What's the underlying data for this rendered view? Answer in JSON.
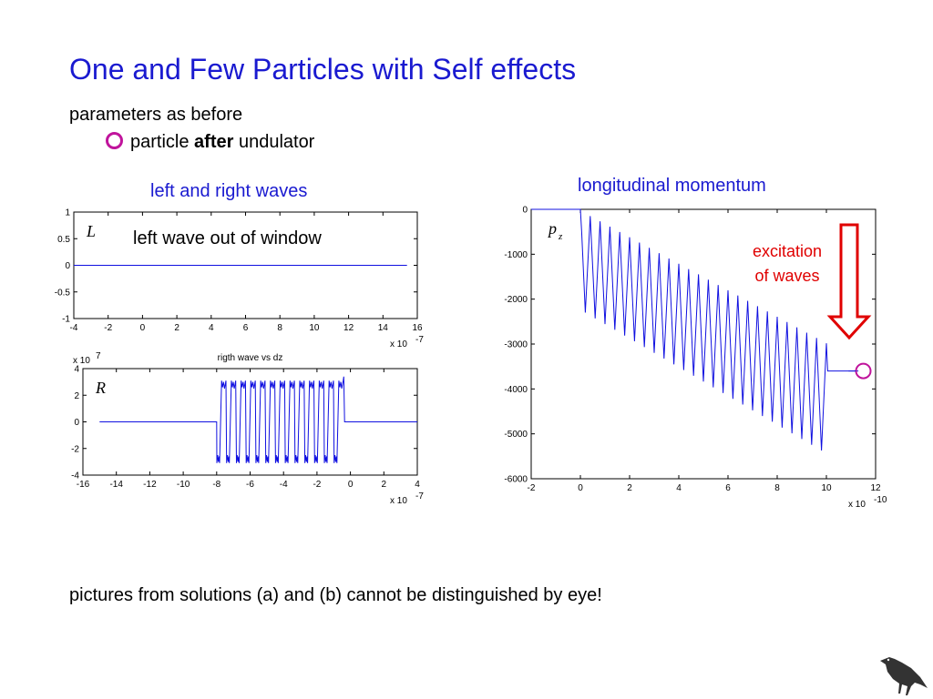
{
  "title": "One and Few Particles with Self effects",
  "subtitle": "parameters as before",
  "bullet": {
    "pre": "particle ",
    "bold": "after",
    "post": " undulator"
  },
  "caption_left": "left and right waves",
  "caption_right": "longitudinal momentum",
  "left_note": "left wave out of window",
  "excitation": {
    "line1": "excitation",
    "line2": "of waves"
  },
  "footer": "pictures from solutions (a) and (b) cannot be distinguished by eye!",
  "colors": {
    "title": "#1a1ad0",
    "curve": "#1010e0",
    "marker": "#c0149c",
    "arrow": "#e00000"
  },
  "chart_data": [
    {
      "id": "L",
      "type": "line",
      "title": "",
      "panel_label": "L",
      "xlim": [
        -4,
        16
      ],
      "ylim": [
        -1,
        1
      ],
      "xticks": [
        "-4",
        "-2",
        "0",
        "2",
        "4",
        "6",
        "8",
        "10",
        "12",
        "14",
        "16"
      ],
      "yticks": [
        "1",
        "0.5",
        "0",
        "-0.5",
        "-1"
      ],
      "x_multiplier": "x 10",
      "x_multiplier_exp": "-7",
      "series": [
        {
          "x": [
            -4,
            15.4
          ],
          "y": [
            0,
            0
          ]
        }
      ]
    },
    {
      "id": "R",
      "type": "line",
      "title": "rigth wave vs dz",
      "panel_label": "R",
      "xlim": [
        -16,
        4
      ],
      "ylim": [
        -4,
        4
      ],
      "xticks": [
        "-16",
        "-14",
        "-12",
        "-10",
        "-8",
        "-6",
        "-4",
        "-2",
        "0",
        "2",
        "4"
      ],
      "yticks": [
        "4",
        "2",
        "0",
        "-2",
        "-4"
      ],
      "y_multiplier": "x 10",
      "y_multiplier_exp": "7",
      "x_multiplier": "x 10",
      "x_multiplier_exp": "-7",
      "series": [
        {
          "description_points": {
            "flat_before": [
              -15,
              -8
            ],
            "oscillation": [
              -8,
              -0.4
            ],
            "amplitude": 3.1,
            "cycles": 13,
            "flat_after": [
              -0.4,
              4
            ]
          }
        }
      ]
    },
    {
      "id": "pz",
      "type": "line",
      "title": "",
      "panel_label": "p",
      "panel_label_sub": "z",
      "xlim": [
        -2,
        12
      ],
      "ylim": [
        -6000,
        0
      ],
      "xticks": [
        "-2",
        "0",
        "2",
        "4",
        "6",
        "8",
        "10",
        "12"
      ],
      "yticks": [
        "0",
        "-1000",
        "-2000",
        "-3000",
        "-4000",
        "-5000",
        "-6000"
      ],
      "x_multiplier": "x 10",
      "x_multiplier_exp": "-10",
      "series": [
        {
          "envelope": {
            "x_start": 0,
            "x_end": 10,
            "cycles": 25,
            "min_start": -2300,
            "min_end": -5500,
            "max_start": -150,
            "max_end": -3100,
            "plateau": -3600
          }
        }
      ],
      "marker": {
        "x": 11.5,
        "y": -3600
      }
    }
  ]
}
